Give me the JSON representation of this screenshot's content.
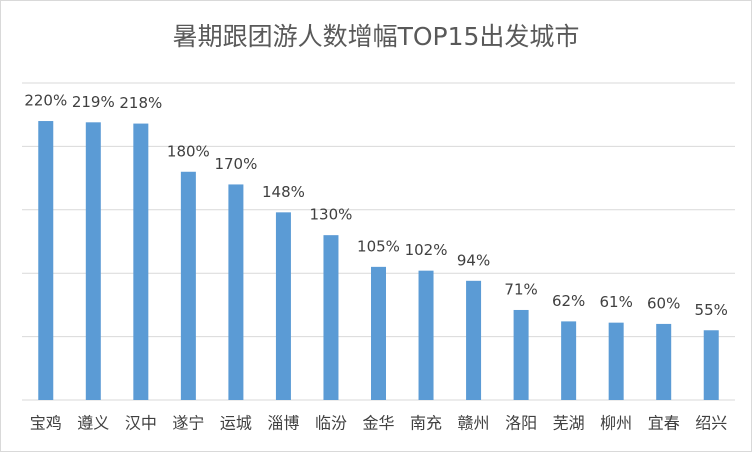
{
  "chart_data": {
    "type": "bar",
    "title": "暑期跟团游人数增幅TOP15出发城市",
    "categories": [
      "宝鸡",
      "遵义",
      "汉中",
      "遂宁",
      "运城",
      "淄博",
      "临汾",
      "金华",
      "南充",
      "赣州",
      "洛阳",
      "芜湖",
      "柳州",
      "宜春",
      "绍兴"
    ],
    "values": [
      220,
      219,
      218,
      180,
      170,
      148,
      130,
      105,
      102,
      94,
      71,
      62,
      61,
      60,
      55
    ],
    "value_labels": [
      "220%",
      "219%",
      "218%",
      "180%",
      "170%",
      "148%",
      "130%",
      "105%",
      "102%",
      "94%",
      "71%",
      "62%",
      "61%",
      "60%",
      "55%"
    ],
    "color": "#5b9bd5",
    "ylim": [
      0,
      250
    ],
    "yticks": [
      0,
      50,
      100,
      150,
      200,
      250
    ],
    "grid": true
  }
}
